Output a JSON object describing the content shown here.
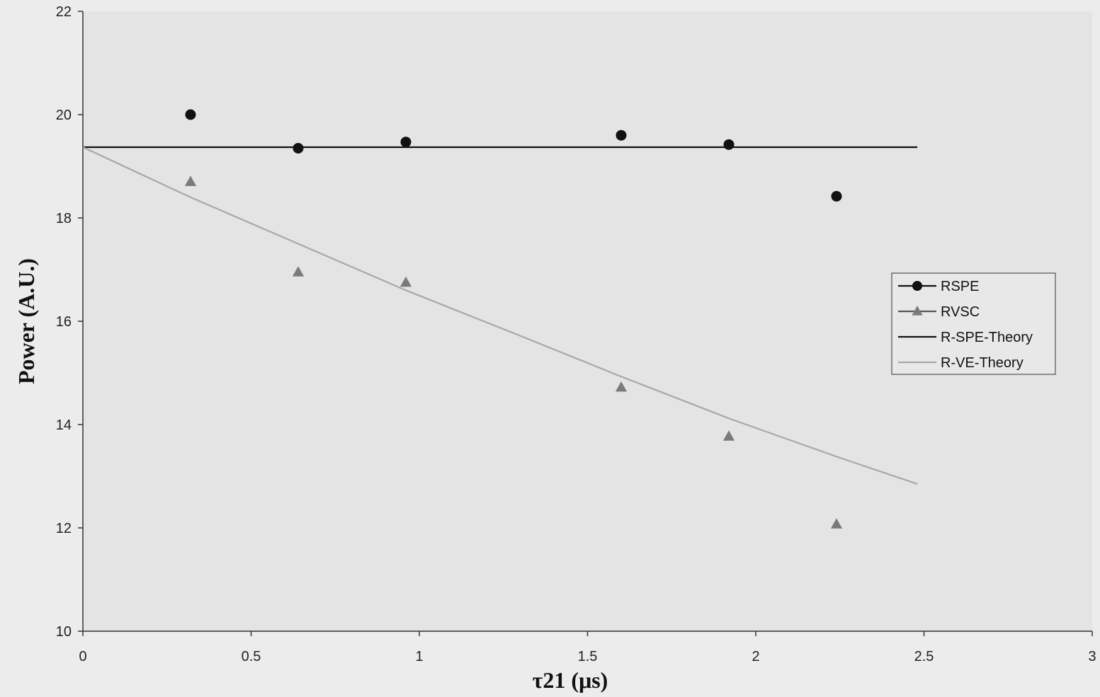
{
  "chart_data": {
    "type": "scatter",
    "title": "",
    "xlabel": "τ21 (μs)",
    "ylabel": "Power (A.U.)",
    "xlim": [
      0,
      3
    ],
    "ylim": [
      10,
      22
    ],
    "xticks": [
      "0",
      "0.5",
      "1",
      "1.5",
      "2",
      "2.5",
      "3"
    ],
    "yticks": [
      "10",
      "12",
      "14",
      "16",
      "18",
      "20",
      "22"
    ],
    "grid": false,
    "legend_position": "right",
    "series": [
      {
        "name": "RSPE",
        "kind": "markers",
        "marker": "circle",
        "color": "#111111",
        "points": [
          [
            0.32,
            20.0
          ],
          [
            0.64,
            19.35
          ],
          [
            0.96,
            19.47
          ],
          [
            1.6,
            19.6
          ],
          [
            1.92,
            19.42
          ],
          [
            2.24,
            18.42
          ]
        ]
      },
      {
        "name": "RVSC",
        "kind": "markers",
        "marker": "triangle",
        "color": "#7a7a7a",
        "points": [
          [
            0.32,
            18.7
          ],
          [
            0.64,
            16.95
          ],
          [
            0.96,
            16.75
          ],
          [
            1.6,
            14.72
          ],
          [
            1.92,
            13.77
          ],
          [
            2.24,
            12.07
          ]
        ]
      },
      {
        "name": "R-SPE-Theory",
        "kind": "line",
        "color": "#111111",
        "points": [
          [
            0,
            19.37
          ],
          [
            2.48,
            19.37
          ]
        ]
      },
      {
        "name": "R-VE-Theory",
        "kind": "line",
        "color": "#a8a8a8",
        "points": [
          [
            0,
            19.37
          ],
          [
            0.32,
            18.4
          ],
          [
            0.64,
            17.5
          ],
          [
            0.96,
            16.6
          ],
          [
            1.28,
            15.77
          ],
          [
            1.6,
            14.93
          ],
          [
            1.92,
            14.12
          ],
          [
            2.24,
            13.38
          ],
          [
            2.48,
            12.85
          ]
        ]
      }
    ]
  }
}
